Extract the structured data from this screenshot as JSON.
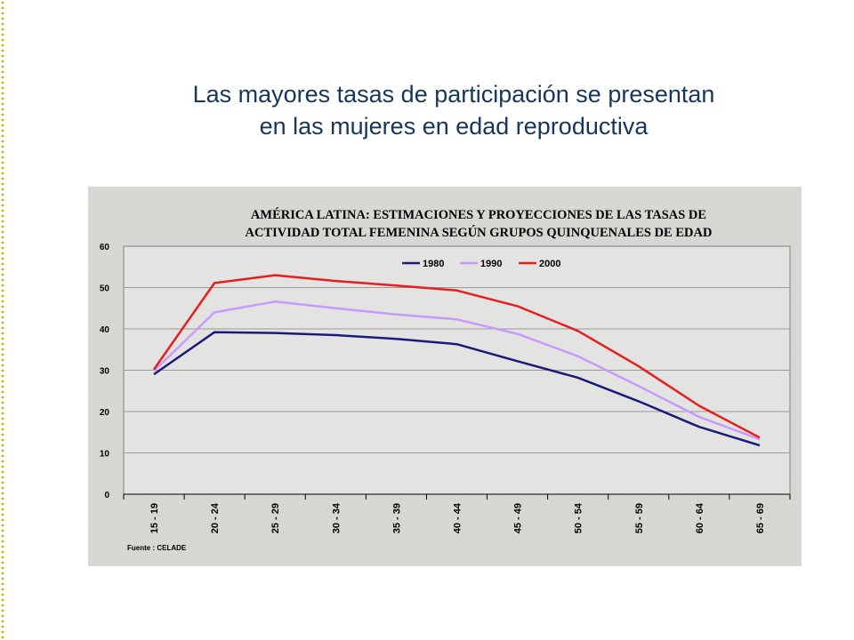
{
  "slide": {
    "title_line1": "Las mayores tasas de participación se presentan",
    "title_line2": "en las mujeres en edad reproductiva"
  },
  "chart_data": {
    "type": "line",
    "title_line1": "AMÉRICA LATINA: ESTIMACIONES Y PROYECCIONES DE LAS TASAS DE",
    "title_line2": "ACTIVIDAD TOTAL FEMENINA SEGÚN GRUPOS QUINQUENALES DE EDAD",
    "categories": [
      "15 - 19",
      "20 - 24",
      "25 - 29",
      "30 - 34",
      "35 - 39",
      "40 - 44",
      "45 - 49",
      "50 - 54",
      "55 - 59",
      "60 - 64",
      "65 - 69"
    ],
    "ylim": [
      0,
      60
    ],
    "yticks": [
      0,
      10,
      20,
      30,
      40,
      50,
      60
    ],
    "grid": true,
    "legend_position": "top-center",
    "series": [
      {
        "name": "1980",
        "color": "#1a1a7a",
        "values": [
          29,
          39.2,
          39,
          38.5,
          37.6,
          36.3,
          32.2,
          28.2,
          22.5,
          16.3,
          11.8
        ]
      },
      {
        "name": "1990",
        "color": "#c79aff",
        "values": [
          29.8,
          44,
          46.6,
          45,
          43.5,
          42.3,
          38.8,
          33.4,
          26.2,
          18.7,
          13.3
        ]
      },
      {
        "name": "2000",
        "color": "#e61e1e",
        "values": [
          30.2,
          51.1,
          53,
          51.6,
          50.5,
          49.3,
          45.5,
          39.5,
          31,
          21.4,
          13.7
        ]
      }
    ],
    "source": "Fuente : CELADE"
  }
}
